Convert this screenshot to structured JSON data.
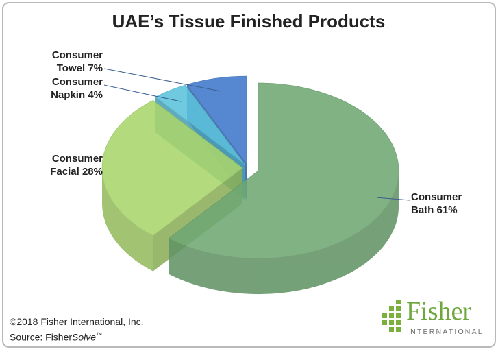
{
  "chart_data": {
    "type": "pie",
    "title": "UAE’s Tissue Finished Products",
    "categories": [
      "Consumer Bath",
      "Consumer Facial",
      "Consumer Napkin",
      "Consumer Towel"
    ],
    "values": [
      61,
      28,
      4,
      7
    ],
    "value_labels": [
      "61%",
      "28%",
      "4%",
      "7%"
    ],
    "colors": [
      "#6fa874",
      "#a9d56c",
      "#5cc3dc",
      "#3f78cb"
    ],
    "footnote": "©2018 Fisher International, Inc.",
    "source": {
      "prefix": "Source: Fisher",
      "italic": "Solve",
      "mark": "™"
    },
    "logo": {
      "name": "Fisher",
      "sub": "INTERNATIONAL"
    }
  }
}
